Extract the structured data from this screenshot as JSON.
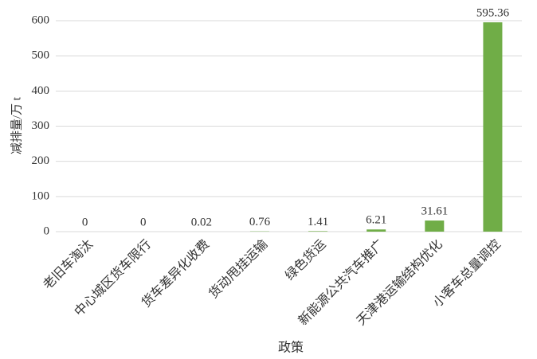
{
  "chart_data": {
    "type": "bar",
    "x_label": "政策",
    "y_label": "减排量/万 t",
    "categories": [
      "老旧车淘汰",
      "中心城区货车限行",
      "货车差异化收费",
      "货动甩挂运输",
      "绿色货运",
      "新能源公共汽车推广",
      "天津港运输结构优化",
      "小客车总量调控"
    ],
    "values": [
      0,
      0,
      0.02,
      0.76,
      1.41,
      6.21,
      31.61,
      595.36
    ],
    "color": "#70ad47",
    "ylim": [
      0,
      600
    ],
    "yticks": [
      0,
      100,
      200,
      300,
      400,
      500,
      600
    ],
    "grid": true
  }
}
